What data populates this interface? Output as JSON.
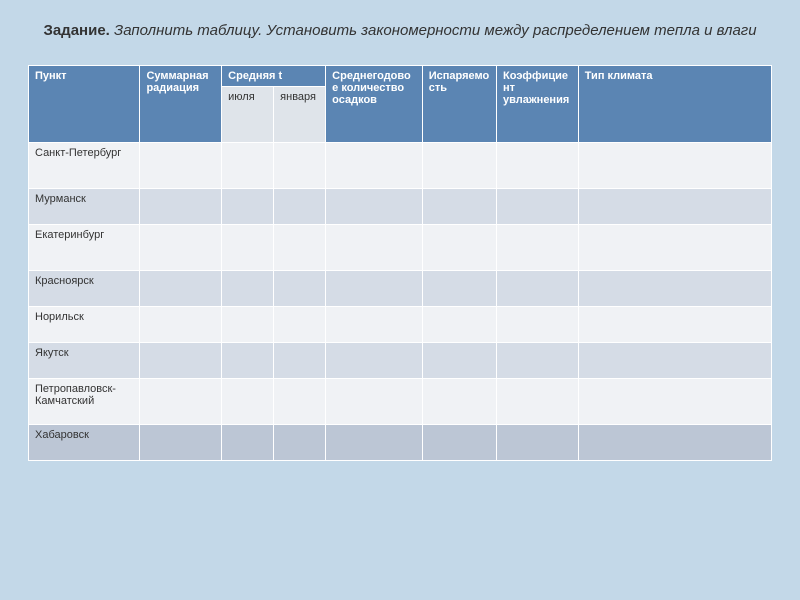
{
  "title": {
    "bold": "Задание.",
    "italic": "Заполнить таблицу. Установить закономерности между распределением тепла и влаги"
  },
  "table": {
    "headers": {
      "punkt": "Пункт",
      "radiation": "Суммарная радиация",
      "avg_t": "Средняя  t",
      "july": "июля",
      "january": "января",
      "precipitation": "Среднегодовое количество осадков",
      "evaporation": "Испаряемость",
      "coefficient": "Коэффициент увлажнения",
      "climate": "Тип климата"
    },
    "rows": [
      {
        "city": "Санкт-Петербург"
      },
      {
        "city": "Мурманск"
      },
      {
        "city": "Екатеринбург"
      },
      {
        "city": "Красноярск"
      },
      {
        "city": "Норильск"
      },
      {
        "city": "Якутск"
      },
      {
        "city": "Петропавловск-Камчатский"
      },
      {
        "city": "Хабаровск"
      }
    ],
    "colors": {
      "page_bg": "#c3d8e8",
      "header_bg": "#5b85b3",
      "header_fg": "#ffffff",
      "subheader_bg": "#dfe4ea",
      "row_odd_bg": "#f0f2f5",
      "row_even_bg": "#d5dce6",
      "row_last_bg": "#bcc6d5",
      "border": "#ffffff",
      "text": "#333333"
    },
    "typography": {
      "title_fontsize": 15,
      "cell_fontsize": 11,
      "font_family": "Arial"
    }
  }
}
